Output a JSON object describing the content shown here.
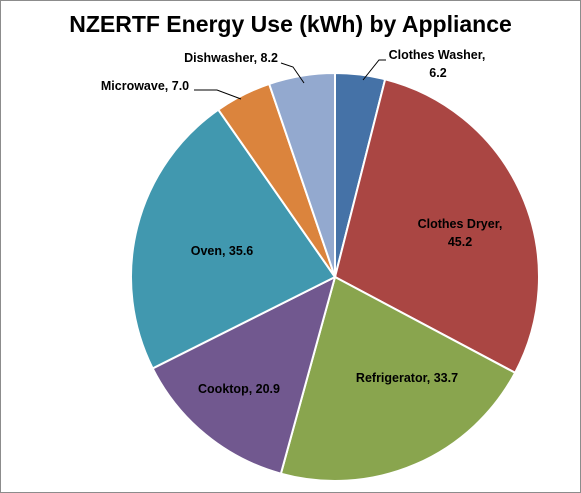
{
  "chart_data": {
    "type": "pie",
    "title": "NZERTF Energy Use (kWh) by Appliance",
    "slices": [
      {
        "name": "Clothes Washer",
        "value": 6.2,
        "label": "Clothes Washer, 6.2",
        "color": "#4572a7"
      },
      {
        "name": "Clothes Dryer",
        "value": 45.2,
        "label": "Clothes Dryer, 45.2",
        "color": "#aa4643"
      },
      {
        "name": "Refrigerator",
        "value": 33.7,
        "label": "Refrigerator, 33.7",
        "color": "#89a54e"
      },
      {
        "name": "Cooktop",
        "value": 20.9,
        "label": "Cooktop, 20.9",
        "color": "#71588f"
      },
      {
        "name": "Oven",
        "value": 35.6,
        "label": "Oven, 35.6",
        "color": "#4198af"
      },
      {
        "name": "Microwave",
        "value": 7.0,
        "label": "Microwave, 7.0",
        "color": "#db843d"
      },
      {
        "name": "Dishwasher",
        "value": 8.2,
        "label": "Dishwasher, 8.2",
        "color": "#93a9cf"
      }
    ],
    "start_angle": "12 o'clock",
    "direction": "clockwise",
    "legend": "none"
  }
}
